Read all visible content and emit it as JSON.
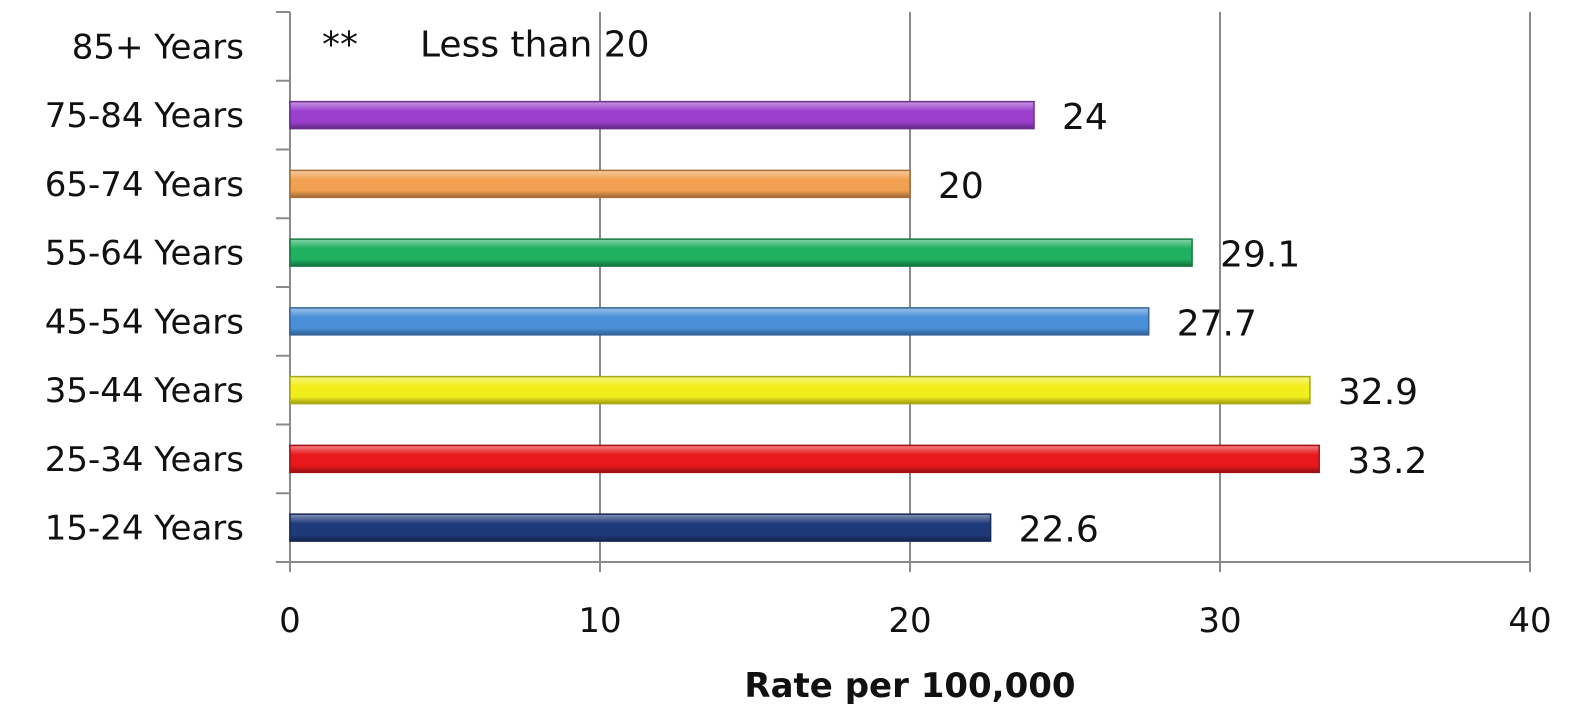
{
  "chart_data": {
    "type": "bar",
    "orientation": "horizontal",
    "categories": [
      "15-24 Years",
      "25-34 Years",
      "35-44 Years",
      "45-54 Years",
      "55-64 Years",
      "65-74 Years",
      "75-84 Years",
      "85+ Years"
    ],
    "values": [
      22.6,
      33.2,
      32.9,
      27.7,
      29.1,
      20,
      24,
      null
    ],
    "data_labels": [
      "22.6",
      "33.2",
      "32.9",
      "27.7",
      "29.1",
      "20",
      "24",
      ""
    ],
    "colors": [
      "#1f3a7a",
      "#e8181c",
      "#f2ee1c",
      "#4a90d9",
      "#1fb060",
      "#f0a050",
      "#9a40cc",
      "#ffffff"
    ],
    "annotation": {
      "category": "85+ Years",
      "marker": "**",
      "text": "Less than 20"
    },
    "xlabel": "Rate per 100,000",
    "ylabel": "",
    "title": "",
    "xlim": [
      0,
      40
    ],
    "xticks": [
      "0",
      "10",
      "20",
      "30",
      "40"
    ],
    "grid": "vertical",
    "legend": "none"
  }
}
